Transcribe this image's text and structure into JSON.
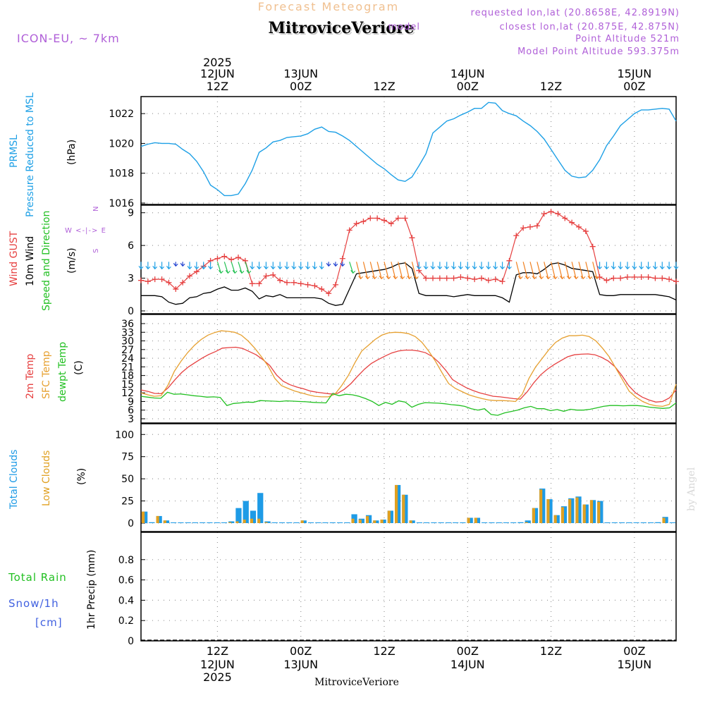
{
  "header": {
    "subtitle": "Forecast Meteogram",
    "station": "MitroviceVeriore",
    "model": "ICON-EU, ~ 7km",
    "requested": "requested lon,lat (20.8658E, 42.8919N)",
    "closest": "closest lon,lat (20.875E, 42.875N)",
    "closest_prefix": "model",
    "point_alt": "Point Altitude 521m",
    "model_alt": "Model Point Altitude 593.375m",
    "footer_station": "MitroviceVeriore",
    "watermark": "by Angel"
  },
  "time_axis": {
    "year": "2025",
    "ticks": [
      {
        "hour": 12,
        "top": "12JUN",
        "sub": "12Z",
        "bottom_day": "12JUN",
        "bottom_year": "2025"
      },
      {
        "hour": 24,
        "top": "13JUN",
        "sub": "00Z",
        "bottom_day": "13JUN"
      },
      {
        "hour": 36,
        "top": "",
        "sub": "12Z",
        "bottom_day": ""
      },
      {
        "hour": 48,
        "top": "14JUN",
        "sub": "00Z",
        "bottom_day": "14JUN"
      },
      {
        "hour": 60,
        "top": "",
        "sub": "12Z",
        "bottom_day": ""
      },
      {
        "hour": 72,
        "top": "15JUN",
        "sub": "00Z",
        "bottom_day": "15JUN"
      }
    ],
    "bottom_labels": [
      "12Z",
      "00Z",
      "12Z",
      "00Z",
      "12Z",
      "00Z"
    ],
    "range_hours": [
      1,
      78
    ]
  },
  "panel_labels": {
    "pressure": {
      "l1": "PRMSL",
      "l2": "Pressure Reduced to MSL",
      "unit": "(hPa)"
    },
    "wind": {
      "gust": "Wind GUST",
      "w10": "10m Wind",
      "dir": "Speed and Direction",
      "unit": "(m/s)",
      "compass_n": "N",
      "compass_s": "S",
      "compass_row": "W <-|-> E"
    },
    "temp": {
      "t2m": "2m Temp",
      "sfc": "SFC Temp",
      "dew": "dewpt Temp",
      "unit": "(C)"
    },
    "cloud": {
      "total": "Total Clouds",
      "low": "Low Clouds",
      "unit": "(%)"
    },
    "precip": {
      "rain": "Total  Rain",
      "snow": "Snow/1h",
      "cm": "[cm]",
      "unit": "1hr Precip (mm)"
    }
  },
  "colors": {
    "pressure": "#1ea0e6",
    "gust": "#e64040",
    "wind10": "#000000",
    "t2m": "#e64040",
    "sfc": "#e6a030",
    "dew": "#22c022",
    "total_cloud": "#1e9be6",
    "low_cloud": "#e0a020",
    "purple": "#b060d8",
    "orange_title": "#f0c090",
    "rain": "#22c022",
    "snow": "#4060e0"
  },
  "chart_data": [
    {
      "type": "line",
      "name": "pressure",
      "ylim": [
        1016,
        1023
      ],
      "yticks": [
        1016,
        1018,
        1020,
        1022
      ],
      "x": [
        1,
        2,
        3,
        4,
        5,
        6,
        7,
        8,
        9,
        10,
        11,
        12,
        13,
        14,
        15,
        16,
        17,
        18,
        19,
        20,
        21,
        22,
        23,
        24,
        25,
        26,
        27,
        28,
        29,
        30,
        31,
        32,
        33,
        34,
        35,
        36,
        37,
        38,
        39,
        40,
        41,
        42,
        43,
        44,
        45,
        46,
        47,
        48,
        49,
        50,
        51,
        52,
        53,
        54,
        55,
        56,
        57,
        58,
        59,
        60,
        61,
        62,
        63,
        64,
        65,
        66,
        67,
        68,
        69,
        70,
        71,
        72,
        73,
        74,
        75,
        76,
        77,
        78
      ],
      "series": [
        {
          "name": "PRMSL",
          "values": [
            1019.8,
            1019.95,
            1020.05,
            1020.0,
            1020.0,
            1019.95,
            1019.6,
            1019.3,
            1018.8,
            1018.1,
            1017.2,
            1016.9,
            1016.5,
            1016.5,
            1016.6,
            1017.3,
            1018.2,
            1019.4,
            1019.7,
            1020.1,
            1020.2,
            1020.4,
            1020.45,
            1020.5,
            1020.65,
            1020.95,
            1021.1,
            1020.8,
            1020.75,
            1020.5,
            1020.2,
            1019.8,
            1019.4,
            1019.0,
            1018.6,
            1018.3,
            1017.9,
            1017.55,
            1017.45,
            1017.75,
            1018.5,
            1019.3,
            1020.7,
            1021.1,
            1021.5,
            1021.65,
            1021.9,
            1022.1,
            1022.35,
            1022.35,
            1022.75,
            1022.7,
            1022.2,
            1022.0,
            1021.85,
            1021.5,
            1021.2,
            1020.8,
            1020.3,
            1019.6,
            1018.9,
            1018.2,
            1017.8,
            1017.7,
            1017.75,
            1018.2,
            1018.9,
            1019.85,
            1020.5,
            1021.2,
            1021.6,
            1022.0,
            1022.25,
            1022.25,
            1022.3,
            1022.35,
            1022.3,
            1021.5
          ]
        }
      ]
    },
    {
      "type": "line",
      "name": "wind",
      "ylim": [
        0,
        9.5
      ],
      "yticks": [
        0,
        3,
        6,
        9
      ],
      "series": [
        {
          "name": "Wind GUST",
          "values": [
            2.8,
            2.7,
            2.9,
            2.9,
            2.6,
            2.0,
            2.6,
            3.2,
            3.6,
            4.1,
            4.6,
            4.8,
            5.0,
            4.7,
            4.9,
            4.6,
            2.5,
            2.5,
            3.2,
            3.3,
            2.8,
            2.6,
            2.6,
            2.5,
            2.4,
            2.3,
            2.0,
            1.6,
            2.4,
            4.8,
            7.4,
            8.0,
            8.2,
            8.5,
            8.5,
            8.3,
            8.0,
            8.5,
            8.5,
            6.7,
            3.7,
            3.0,
            3.0,
            3.0,
            3.0,
            3.0,
            3.1,
            3.0,
            2.9,
            3.0,
            2.8,
            2.9,
            2.7,
            4.6,
            6.9,
            7.6,
            7.7,
            7.8,
            8.9,
            9.1,
            8.9,
            8.5,
            8.1,
            7.7,
            7.3,
            5.9,
            3.1,
            2.8,
            3.0,
            3.0,
            3.1,
            3.1,
            3.1,
            3.1,
            3.0,
            3.0,
            2.9,
            2.7
          ]
        },
        {
          "name": "10m Wind",
          "values": [
            1.4,
            1.4,
            1.4,
            1.3,
            0.8,
            0.6,
            0.7,
            1.2,
            1.3,
            1.6,
            1.7,
            2.0,
            2.2,
            1.9,
            1.9,
            2.1,
            1.8,
            1.1,
            1.4,
            1.3,
            1.5,
            1.2,
            1.2,
            1.2,
            1.2,
            1.2,
            1.1,
            0.7,
            0.5,
            0.6,
            2.0,
            3.4,
            3.5,
            3.6,
            3.7,
            3.8,
            4.0,
            4.3,
            4.4,
            3.9,
            1.6,
            1.4,
            1.4,
            1.4,
            1.4,
            1.3,
            1.4,
            1.5,
            1.4,
            1.4,
            1.4,
            1.4,
            1.2,
            0.8,
            3.3,
            3.5,
            3.5,
            3.4,
            3.8,
            4.3,
            4.4,
            4.2,
            3.9,
            3.8,
            3.7,
            3.6,
            1.5,
            1.4,
            1.4,
            1.5,
            1.5,
            1.5,
            1.5,
            1.5,
            1.5,
            1.4,
            1.3,
            1.0
          ]
        }
      ]
    },
    {
      "type": "line",
      "name": "temperature",
      "ylim": [
        3,
        36
      ],
      "yticks": [
        3,
        6,
        9,
        12,
        15,
        18,
        21,
        24,
        27,
        30,
        33,
        36
      ],
      "series": [
        {
          "name": "2m Temp",
          "values": [
            13.0,
            12.5,
            11.8,
            11.7,
            13.7,
            16.5,
            19.0,
            21.0,
            22.5,
            24.0,
            25.3,
            26.3,
            27.5,
            27.7,
            27.8,
            27.4,
            26.3,
            25.2,
            23.5,
            21.5,
            18.2,
            16.0,
            14.8,
            14.0,
            13.4,
            12.6,
            12.2,
            11.9,
            11.6,
            11.8,
            13.2,
            15.2,
            17.8,
            20.2,
            22.2,
            23.5,
            24.7,
            25.8,
            26.5,
            26.8,
            26.8,
            26.5,
            25.9,
            24.6,
            22.5,
            19.8,
            16.6,
            15.1,
            13.8,
            12.8,
            12.0,
            11.4,
            10.8,
            10.6,
            10.3,
            10.0,
            9.8,
            12.3,
            15.5,
            18.2,
            20.2,
            21.8,
            23.2,
            24.5,
            25.2,
            25.4,
            25.5,
            25.2,
            24.3,
            23.0,
            21.0,
            18.0,
            14.5,
            12.0,
            10.5,
            9.5,
            8.8,
            9.0,
            10.2,
            13.0
          ]
        },
        {
          "name": "SFC Temp",
          "values": [
            12.0,
            11.3,
            10.8,
            11.0,
            14.5,
            19.5,
            23.0,
            26.0,
            28.5,
            30.5,
            32.0,
            32.9,
            33.5,
            33.3,
            33.0,
            32.0,
            30.0,
            27.5,
            24.5,
            21.3,
            17.0,
            14.5,
            13.5,
            12.6,
            12.0,
            11.3,
            10.8,
            10.6,
            10.6,
            11.5,
            14.5,
            18.0,
            22.5,
            26.5,
            28.5,
            30.5,
            32.0,
            32.8,
            33.0,
            32.9,
            32.5,
            31.5,
            29.5,
            26.5,
            23.0,
            19.0,
            15.2,
            13.5,
            12.4,
            11.3,
            10.6,
            10.0,
            9.5,
            9.3,
            9.3,
            9.2,
            9.0,
            11.5,
            17.0,
            21.0,
            24.0,
            27.0,
            29.5,
            31.0,
            31.8,
            31.8,
            32.0,
            31.5,
            30.0,
            27.5,
            24.5,
            20.5,
            16.5,
            12.5,
            10.5,
            9.0,
            8.0,
            7.5,
            7.3,
            8.0,
            15.0
          ]
        },
        {
          "name": "dewpt Temp",
          "values": [
            10.8,
            10.5,
            10.2,
            10.1,
            12.2,
            11.5,
            11.6,
            11.3,
            11.0,
            10.8,
            10.5,
            10.6,
            10.4,
            7.6,
            8.3,
            8.5,
            8.8,
            8.7,
            9.3,
            9.2,
            9.1,
            9.0,
            9.2,
            9.1,
            9.0,
            8.9,
            8.7,
            8.6,
            8.5,
            11.7,
            11.0,
            11.5,
            11.3,
            10.8,
            10.0,
            9.0,
            7.6,
            8.7,
            8.0,
            9.2,
            8.8,
            7.0,
            8.0,
            8.6,
            8.5,
            8.4,
            8.2,
            7.9,
            7.7,
            7.3,
            6.5,
            6.0,
            6.5,
            4.5,
            4.2,
            5.0,
            5.5,
            6.0,
            6.8,
            7.3,
            6.5,
            6.5,
            5.8,
            6.2,
            5.6,
            6.3,
            6.0,
            6.0,
            6.3,
            6.8,
            7.3,
            7.6,
            7.6,
            7.5,
            7.6,
            7.6,
            7.4,
            7.0,
            6.8,
            6.6,
            6.8,
            8.5
          ]
        }
      ]
    },
    {
      "type": "bar",
      "name": "clouds",
      "ylim": [
        0,
        105
      ],
      "yticks": [
        0,
        25,
        50,
        75,
        100
      ],
      "series": [
        {
          "name": "Total Clouds",
          "values": [
            13,
            1,
            8,
            3,
            0,
            0,
            0,
            0,
            0,
            0,
            0,
            0,
            2,
            17,
            25,
            14,
            34,
            2,
            0,
            0,
            0,
            0,
            3,
            0,
            0,
            0,
            0,
            0,
            0,
            10,
            5,
            9,
            3,
            4,
            14,
            43,
            32,
            3,
            0,
            0,
            0,
            0,
            0,
            0,
            0,
            6,
            6,
            0,
            0,
            0,
            0,
            0,
            1,
            3,
            17,
            39,
            27,
            9,
            19,
            28,
            30,
            21,
            26,
            25,
            0,
            0,
            0,
            0,
            0,
            0,
            0,
            1,
            7,
            0
          ]
        },
        {
          "name": "Low Clouds",
          "values": [
            13,
            0,
            8,
            3,
            0,
            0,
            0,
            0,
            0,
            0,
            0,
            0,
            1,
            2,
            4,
            5,
            5,
            1,
            0,
            0,
            0,
            0,
            3,
            0,
            0,
            0,
            0,
            0,
            0,
            5,
            4,
            8,
            3,
            4,
            14,
            43,
            32,
            3,
            0,
            0,
            0,
            0,
            0,
            0,
            0,
            6,
            6,
            0,
            0,
            0,
            0,
            0,
            0,
            1,
            17,
            38,
            27,
            9,
            18,
            27,
            29,
            21,
            26,
            24,
            0,
            0,
            0,
            0,
            0,
            0,
            0,
            0,
            6,
            0
          ]
        }
      ]
    },
    {
      "type": "bar",
      "name": "precipitation",
      "ylim": [
        0,
        1.0
      ],
      "yticks": [
        0,
        0.2,
        0.4,
        0.6,
        0.8
      ],
      "series": [
        {
          "name": "1hr Precip",
          "values": []
        }
      ]
    }
  ]
}
